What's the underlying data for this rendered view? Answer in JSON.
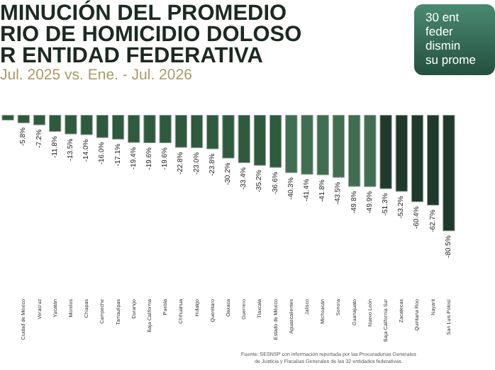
{
  "chart_data": {
    "type": "bar",
    "title": "MINUCIÓN DEL PROMEDIO\nRIO DE HOMICIDIO DOLOSO\nR ENTIDAD FEDERATIVA",
    "subtitle": "Jul. 2025 vs. Ene. - Jul. 2026",
    "annotations": [
      "30 ent\nfeder\ndismin\nsu prome",
      "Fuente: SESNSP con información reportada por las Procuradurías Generales\nde Justicia y Fiscalías Generales de las 32 entidades federativas."
    ],
    "categories": [
      null,
      "Ciudad de México",
      "Veracruz",
      "Yucatán",
      "Morelos",
      "Chiapas",
      "Campeche",
      "Tamaulipas",
      "Durango",
      "Baja California",
      "Puebla",
      "Chihuahua",
      "Hidalgo",
      "Querétaro",
      "Oaxaca",
      "Guerrero",
      "Tlaxcala",
      "Estado de México",
      "Aguascalientes",
      "Jalisco",
      "Michoacán",
      "Sonora",
      "Guanajuato",
      "Nuevo León",
      "Baja California Sur",
      "Zacatecas",
      "Quintana Roo",
      "Nayarit",
      "San Luis Potosí"
    ],
    "values": [
      -3.9,
      -5.8,
      -7.2,
      -11.8,
      -13.5,
      -14.0,
      -16.0,
      -17.1,
      -19.4,
      -19.6,
      -19.6,
      -22.8,
      -23.0,
      -23.8,
      -30.2,
      -33.4,
      -35.2,
      -36.6,
      -40.3,
      -41.4,
      -41.8,
      -43.5,
      -49.8,
      -49.9,
      -51.3,
      -53.2,
      -60.4,
      -62.7,
      -80.5
    ],
    "value_labels": [
      null,
      "-5.8%",
      "-7.2%",
      "-11.8%",
      "-13.5%",
      "-14.0%",
      "-16.0%",
      "-17.1%",
      "-19.4%",
      "-19.6%",
      "-19.6%",
      "-22.8%",
      "-23.0%",
      "-23.8%",
      "-30.2%",
      "-33.4%",
      "-35.2%",
      "-36.6%",
      "-40.3%",
      "-41.4%",
      "-41.8%",
      "-43.5%",
      "-49.8%",
      "-49.9%",
      "-51.3%",
      "-53.2%",
      "-60.4%",
      "-62.7%",
      "-80.5%"
    ],
    "colors": [
      "#2e5a3e",
      "#2e5a3e",
      "#2e5a3e",
      "#2e5a3e",
      "#2e5a3e",
      "#2e5a3e",
      "#2e5a3e",
      "#2e5a3e",
      "#2e5a3e",
      "#2e5a3e",
      "#2e5a3e",
      "#2e5a3e",
      "#2e5a3e",
      "#2e5a3e",
      "#2e5a3e",
      "#2e5a3e",
      "#2e5a3e",
      "#2e5a3e",
      "#3f6e52",
      "#3f6e52",
      "#3f6e52",
      "#3f6e52",
      "#3f6e52",
      "#3f6e52",
      "#1f3a2a",
      "#1f3a2a",
      "#1f3a2a",
      "#1f3a2a",
      "#1f3a2a"
    ],
    "orientation": "vertical"
  }
}
